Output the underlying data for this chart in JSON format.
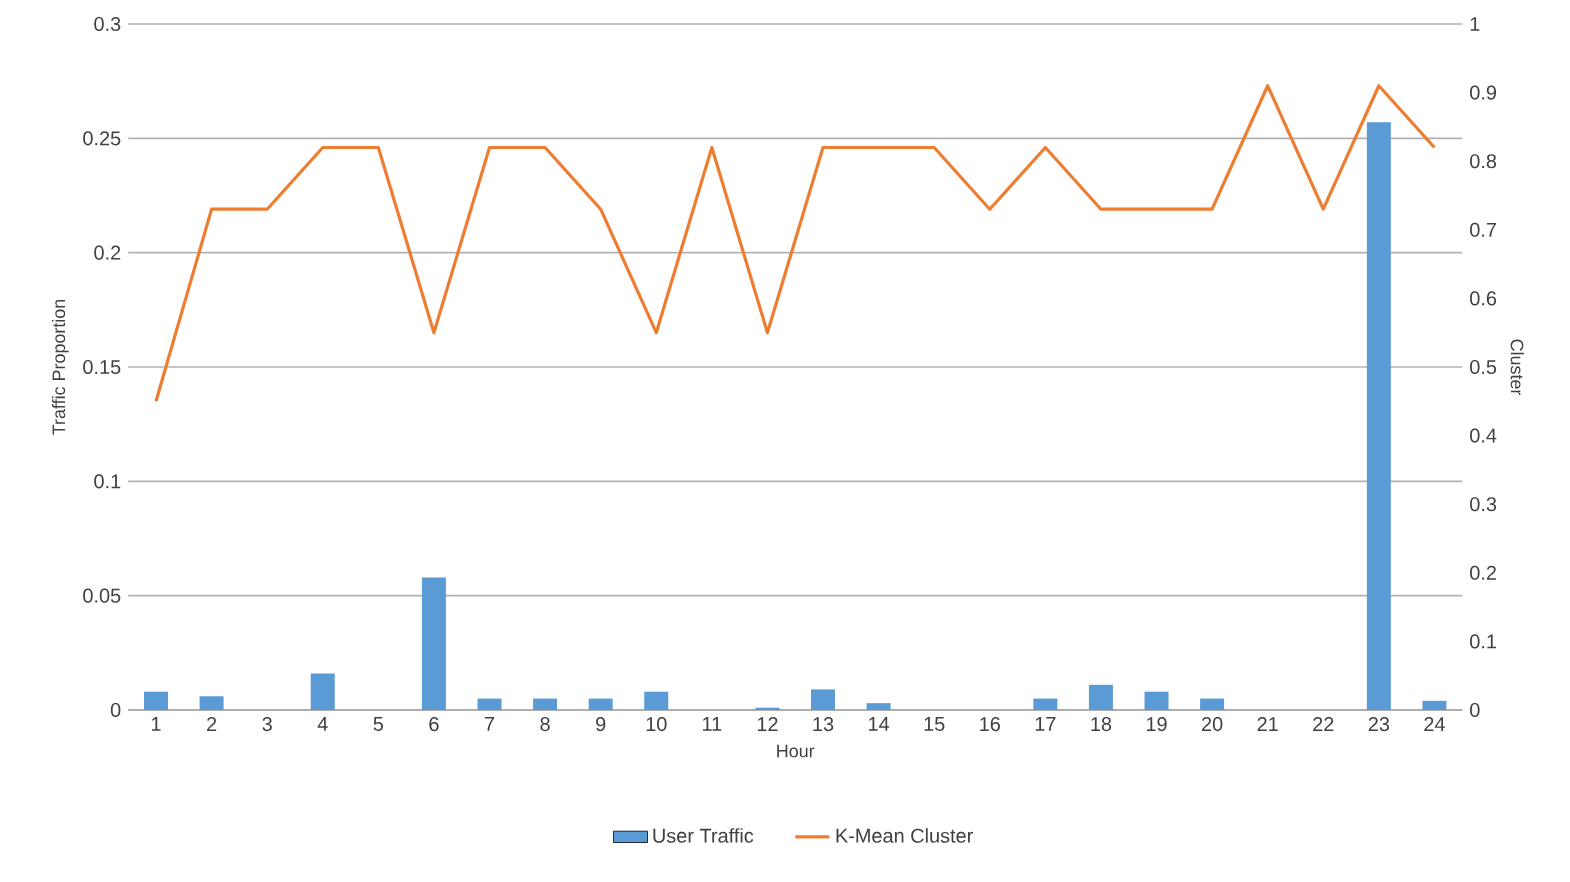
{
  "chart_data": {
    "type": "bar",
    "xlabel": "Hour",
    "ylabel": "Traffic Proportion",
    "y2label": "Cluster",
    "categories": [
      "1",
      "2",
      "3",
      "4",
      "5",
      "6",
      "7",
      "8",
      "9",
      "10",
      "11",
      "12",
      "13",
      "14",
      "15",
      "16",
      "17",
      "18",
      "19",
      "20",
      "21",
      "22",
      "23",
      "24"
    ],
    "series": [
      {
        "name": "User Traffic",
        "color": "#5b9bd5",
        "values": [
          0.008,
          0.006,
          0,
          0.016,
          0,
          0.058,
          0.005,
          0.005,
          0.005,
          0.008,
          0,
          0.001,
          0.009,
          0.003,
          0,
          0,
          0.005,
          0.011,
          0.008,
          0.005,
          0,
          0,
          0.257,
          0.004
        ]
      },
      {
        "name": "K-Mean Cluster",
        "type": "line",
        "axis": "y2",
        "color": "#ed7d31",
        "values": [
          0.45,
          0.73,
          0.73,
          0.82,
          0.82,
          0.55,
          0.82,
          0.82,
          0.73,
          0.55,
          0.82,
          0.55,
          0.82,
          0.82,
          0.82,
          0.73,
          0.82,
          0.73,
          0.73,
          0.73,
          0.91,
          0.73,
          0.91,
          0.82
        ]
      }
    ],
    "ylim": [
      0,
      0.3
    ],
    "yticks": [
      0,
      0.05,
      0.1,
      0.15,
      0.2,
      0.25,
      0.3
    ],
    "y2lim": [
      0,
      1
    ],
    "y2ticks": [
      0,
      0.1,
      0.2,
      0.3,
      0.4,
      0.5,
      0.6,
      0.7,
      0.8,
      0.9,
      1
    ],
    "grid": "y",
    "legend": "bottom"
  }
}
